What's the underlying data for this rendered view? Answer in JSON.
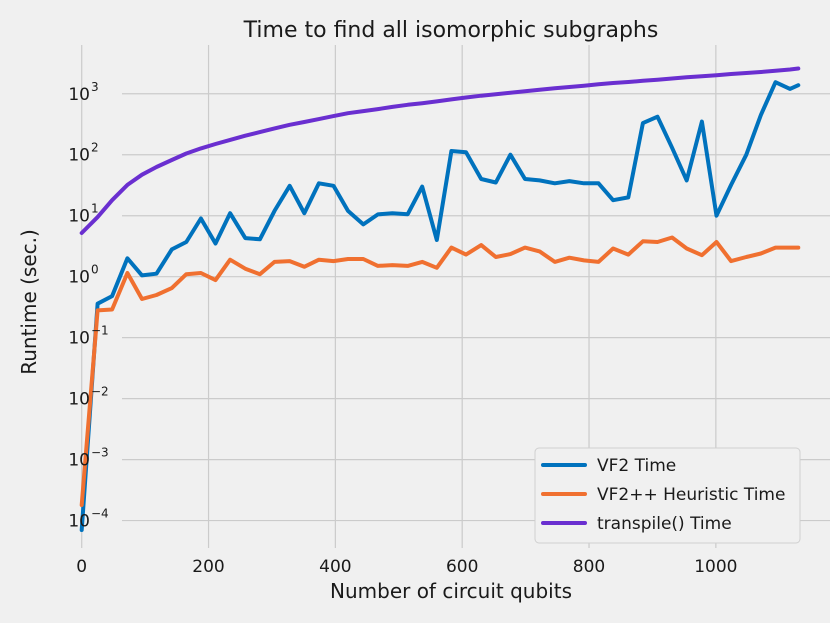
{
  "chart_data": {
    "type": "line",
    "title": "Time to find all isomorphic subgraphs",
    "xlabel": "Number of circuit qubits",
    "ylabel": "Runtime (sec.)",
    "yscale": "log",
    "xlim": [
      -50,
      1180
    ],
    "ylim_log10": [
      -4.45,
      3.8
    ],
    "x_ticks": [
      0,
      200,
      400,
      600,
      800,
      1000
    ],
    "x_tick_labels": [
      "0",
      "200",
      "400",
      "600",
      "800",
      "1000"
    ],
    "y_ticks": [
      {
        "value": 0.0001,
        "base": "10",
        "exp": "−4"
      },
      {
        "value": 0.001,
        "base": "10",
        "exp": "−3"
      },
      {
        "value": 0.01,
        "base": "10",
        "exp": "−2"
      },
      {
        "value": 0.1,
        "base": "10",
        "exp": "−1"
      },
      {
        "value": 1,
        "base": "10",
        "exp": "0"
      },
      {
        "value": 10,
        "base": "10",
        "exp": "1"
      },
      {
        "value": 100,
        "base": "10",
        "exp": "2"
      },
      {
        "value": 1000,
        "base": "10",
        "exp": "3"
      }
    ],
    "x": [
      0,
      25,
      48,
      72,
      95,
      118,
      142,
      165,
      188,
      211,
      234,
      258,
      281,
      304,
      328,
      351,
      374,
      397,
      420,
      444,
      467,
      490,
      514,
      537,
      560,
      583,
      606,
      630,
      653,
      676,
      699,
      722,
      746,
      769,
      792,
      815,
      838,
      862,
      885,
      908,
      931,
      954,
      978,
      1001,
      1024,
      1048,
      1071,
      1094,
      1117,
      1130
    ],
    "series": [
      {
        "name": "VF2 Time",
        "color": "#0072bd",
        "values": [
          7e-05,
          0.36,
          0.48,
          2.0,
          1.05,
          1.12,
          2.8,
          3.7,
          9.0,
          3.5,
          11.0,
          4.3,
          4.1,
          12.0,
          31.0,
          11.0,
          34.0,
          31.0,
          12.0,
          7.2,
          10.5,
          11.0,
          10.6,
          30.0,
          4.0,
          115.0,
          110.0,
          40.0,
          35.0,
          100.0,
          40.0,
          38.0,
          34.0,
          37.0,
          34.0,
          34.0,
          18.0,
          20.0,
          330.0,
          420.0,
          130.0,
          38.0,
          350.0,
          10.0,
          32.0,
          100.0,
          450.0,
          1550.0,
          1200.0,
          1380.0
        ]
      },
      {
        "name": "VF2++ Heuristic Time",
        "color": "#f07030",
        "values": [
          0.00018,
          0.28,
          0.29,
          1.15,
          0.43,
          0.5,
          0.65,
          1.1,
          1.15,
          0.88,
          1.9,
          1.35,
          1.1,
          1.75,
          1.8,
          1.45,
          1.9,
          1.8,
          1.95,
          1.95,
          1.5,
          1.55,
          1.5,
          1.75,
          1.4,
          3.0,
          2.3,
          3.3,
          2.1,
          2.35,
          3.0,
          2.6,
          1.75,
          2.05,
          1.85,
          1.75,
          2.9,
          2.3,
          3.8,
          3.7,
          4.4,
          2.9,
          2.25,
          3.7,
          1.8,
          2.1,
          2.4,
          3.0,
          3.0,
          3.0
        ]
      },
      {
        "name": "transpile() Time",
        "color": "#6a2fd0",
        "values": [
          5.2,
          9.5,
          18.0,
          32.0,
          47.0,
          63.0,
          82.0,
          105.0,
          127.0,
          150.0,
          175.0,
          205.0,
          235.0,
          270.0,
          310.0,
          345.0,
          385.0,
          430.0,
          480.0,
          520.0,
          560.0,
          610.0,
          660.0,
          700.0,
          750.0,
          810.0,
          870.0,
          930.0,
          980.0,
          1040.0,
          1100.0,
          1160.0,
          1230.0,
          1290.0,
          1350.0,
          1430.0,
          1500.0,
          1560.0,
          1630.0,
          1700.0,
          1780.0,
          1860.0,
          1940.0,
          2020.0,
          2110.0,
          2190.0,
          2280.0,
          2380.0,
          2500.0,
          2600.0
        ]
      }
    ],
    "legend": {
      "position": "bottom-right",
      "entries": [
        "VF2 Time",
        "VF2++ Heuristic Time",
        "transpile() Time"
      ]
    },
    "grid": true
  }
}
